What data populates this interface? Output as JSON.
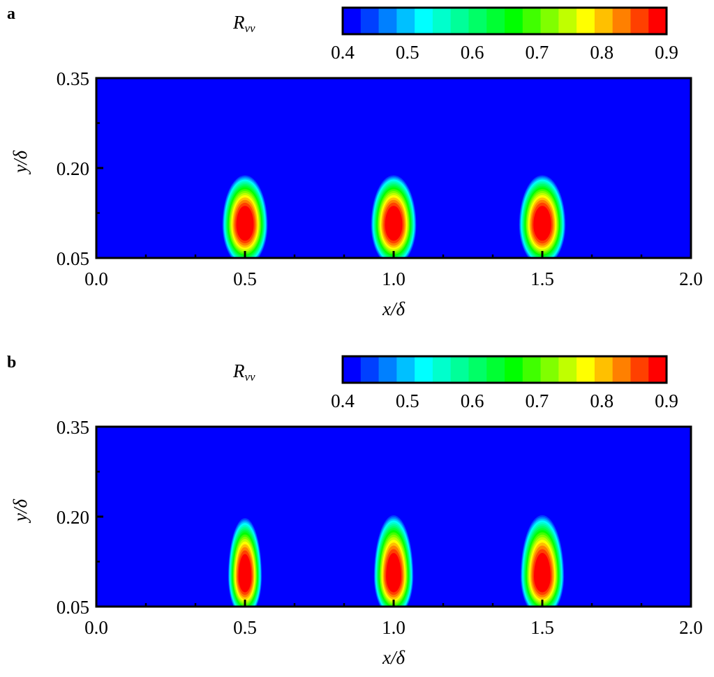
{
  "chart_data": [
    {
      "type": "heatmap",
      "panel_label": "a",
      "colorbar_label": "R",
      "colorbar_label_sub": "vv",
      "colorbar_ticks": [
        "0.4",
        "0.5",
        "0.6",
        "0.7",
        "0.8",
        "0.9"
      ],
      "colorbar_range": [
        0.4,
        0.9
      ],
      "xlabel": "x/δ",
      "ylabel": "y/δ",
      "xlim": [
        0.0,
        2.0
      ],
      "ylim": [
        0.05,
        0.35
      ],
      "xticks": [
        "0.0",
        "0.5",
        "1.0",
        "1.5",
        "2.0"
      ],
      "yticks": [
        "0.05",
        "0.20",
        "0.35"
      ],
      "background_value": 0.4,
      "peaks": [
        {
          "x": 0.5,
          "y": 0.105,
          "peak": 0.95,
          "x_halfwidth": 0.078,
          "y_extent_up": 0.085,
          "y_extent_down": 0.07
        },
        {
          "x": 1.0,
          "y": 0.105,
          "peak": 0.95,
          "x_halfwidth": 0.078,
          "y_extent_up": 0.085,
          "y_extent_down": 0.07
        },
        {
          "x": 1.5,
          "y": 0.105,
          "peak": 0.95,
          "x_halfwidth": 0.08,
          "y_extent_up": 0.085,
          "y_extent_down": 0.07
        }
      ]
    },
    {
      "type": "heatmap",
      "panel_label": "b",
      "colorbar_label": "R",
      "colorbar_label_sub": "vv",
      "colorbar_ticks": [
        "0.4",
        "0.5",
        "0.6",
        "0.7",
        "0.8",
        "0.9"
      ],
      "colorbar_range": [
        0.4,
        0.9
      ],
      "xlabel": "x/δ",
      "ylabel": "y/δ",
      "xlim": [
        0.0,
        2.0
      ],
      "ylim": [
        0.05,
        0.35
      ],
      "xticks": [
        "0.0",
        "0.5",
        "1.0",
        "1.5",
        "2.0"
      ],
      "yticks": [
        "0.05",
        "0.20",
        "0.35"
      ],
      "background_value": 0.4,
      "peaks": [
        {
          "x": 0.5,
          "y": 0.1,
          "peak": 0.95,
          "x_halfwidth": 0.058,
          "y_extent_up": 0.1,
          "y_extent_down": 0.07
        },
        {
          "x": 1.0,
          "y": 0.1,
          "peak": 0.95,
          "x_halfwidth": 0.068,
          "y_extent_up": 0.105,
          "y_extent_down": 0.07
        },
        {
          "x": 1.5,
          "y": 0.1,
          "peak": 0.95,
          "x_halfwidth": 0.075,
          "y_extent_up": 0.105,
          "y_extent_down": 0.07
        }
      ]
    }
  ],
  "colormap": [
    "#0000ff",
    "#0040ff",
    "#0080ff",
    "#00c0ff",
    "#00ffff",
    "#00ffcc",
    "#00ff99",
    "#00ff66",
    "#00ff33",
    "#00ff00",
    "#40ff00",
    "#80ff00",
    "#c0ff00",
    "#ffff00",
    "#ffc000",
    "#ff8000",
    "#ff4000",
    "#ff0000"
  ]
}
